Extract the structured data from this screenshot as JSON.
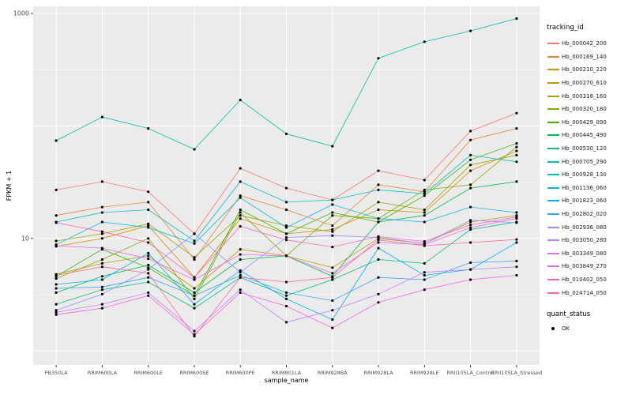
{
  "colors": {
    "panel_bg": "#EBEBEB",
    "grid": "#FFFFFF",
    "tick_color": "#4D4D4D",
    "axis_tick_mark": "#333333",
    "point_color": "#000000"
  },
  "chart_data": {
    "type": "line",
    "title": "",
    "xlabel": "sample_name",
    "ylabel": "FPKM + 1",
    "y_scale": "log10",
    "ylim": [
      0.75,
      1157
    ],
    "y_ticks": [
      10,
      1000
    ],
    "y_major_grid": [
      1,
      10,
      100,
      1000
    ],
    "y_minor_grid": [
      3.162,
      31.62,
      316.2
    ],
    "grid": true,
    "legend_position": "right",
    "legend": {
      "color_title": "tracking_id",
      "shape_title": "quant_status",
      "shape_items": [
        "OK"
      ]
    },
    "categories": [
      "PB350LA",
      "RRIM600LA",
      "RRIM600LE",
      "RRIM600SE",
      "RRIM600PE",
      "RRIM901LA",
      "RRIM928BA",
      "RRIM928LA",
      "RRIM928LE",
      "RRII105LA_Control",
      "RRII105LA_Stressed"
    ],
    "series": [
      {
        "name": "Hb_000042_200",
        "color": "#F8766D",
        "values": [
          27,
          32,
          26,
          11,
          42,
          28,
          22,
          40,
          33,
          90,
          130
        ]
      },
      {
        "name": "Hb_000169_140",
        "color": "#EA8331",
        "values": [
          16,
          19,
          21,
          6.5,
          24,
          18,
          13,
          30,
          26,
          75,
          95
        ]
      },
      {
        "name": "Hb_000210_220",
        "color": "#D89000",
        "values": [
          8.5,
          10,
          13,
          4.5,
          15,
          11,
          12,
          18,
          17,
          40,
          60
        ]
      },
      {
        "name": "Hb_000270_610",
        "color": "#C09B00",
        "values": [
          4.8,
          6,
          7,
          3.6,
          8,
          7,
          5.5,
          10,
          9,
          14,
          16
        ]
      },
      {
        "name": "Hb_000318_160",
        "color": "#A3A500",
        "values": [
          9.5,
          11,
          13.5,
          6.8,
          16,
          13,
          11.5,
          21,
          18,
          45,
          55
        ]
      },
      {
        "name": "Hb_000320_180",
        "color": "#7CAE00",
        "values": [
          4.4,
          6.5,
          10,
          2.9,
          17,
          7,
          16,
          15,
          27,
          30,
          65
        ]
      },
      {
        "name": "Hb_000429_090",
        "color": "#39B600",
        "values": [
          4.6,
          8,
          5.5,
          3.1,
          18,
          11,
          17,
          14,
          24,
          50,
          70
        ]
      },
      {
        "name": "Hb_000445_490",
        "color": "#00BB4E",
        "values": [
          3.3,
          4.6,
          5.8,
          3.3,
          6.5,
          7,
          4.6,
          14,
          16,
          28,
          32
        ]
      },
      {
        "name": "Hb_000530_120",
        "color": "#00BF7D",
        "values": [
          2.6,
          3.5,
          4.1,
          2.4,
          4.5,
          3.1,
          4.3,
          6.5,
          6,
          12,
          14
        ]
      },
      {
        "name": "Hb_000705_290",
        "color": "#00C1A3",
        "values": [
          74,
          120,
          95,
          62,
          170,
          85,
          66,
          400,
          560,
          700,
          900
        ]
      },
      {
        "name": "Hb_000928_130",
        "color": "#00BFC4",
        "values": [
          14,
          17,
          18,
          9.5,
          32,
          21,
          22,
          27,
          25,
          55,
          48
        ]
      },
      {
        "name": "Hb_001136_060",
        "color": "#00BAE0",
        "values": [
          8.8,
          14,
          12.5,
          9,
          23,
          12.5,
          20,
          15,
          14,
          19,
          17
        ]
      },
      {
        "name": "Hb_001823_060",
        "color": "#00B0F6",
        "values": [
          3.9,
          4.3,
          7.4,
          2.6,
          5.2,
          2.9,
          1.9,
          8.2,
          4.7,
          5.3,
          9.2
        ]
      },
      {
        "name": "Hb_002802_020",
        "color": "#35A2FF",
        "values": [
          3.6,
          3.7,
          4.5,
          3.1,
          4.7,
          3.3,
          2.8,
          4.5,
          4.3,
          6.1,
          6.3
        ]
      },
      {
        "name": "Hb_002936_080",
        "color": "#9590FF",
        "values": [
          2.3,
          3.2,
          5.3,
          11,
          5,
          10.2,
          10.6,
          10.2,
          9,
          14.5,
          13.8
        ]
      },
      {
        "name": "Hb_003050_280",
        "color": "#C77CFF",
        "values": [
          2.2,
          2.6,
          3.3,
          1.5,
          3.5,
          1.8,
          2.3,
          3.2,
          5,
          5.3,
          5.6
        ]
      },
      {
        "name": "Hb_003349_080",
        "color": "#E76BF3",
        "values": [
          8.6,
          8.2,
          6.6,
          4.3,
          7.2,
          7,
          4.9,
          9.2,
          8.8,
          12.5,
          15
        ]
      },
      {
        "name": "Hb_003849_270",
        "color": "#FA62DB",
        "values": [
          2.1,
          2.4,
          3.1,
          1.4,
          3.3,
          2.5,
          1.6,
          2.7,
          3.5,
          4.3,
          4.7
        ]
      },
      {
        "name": "Hb_010402_050",
        "color": "#FF62BC",
        "values": [
          13.8,
          11.5,
          9.2,
          4.5,
          12.8,
          9.7,
          8.4,
          10.4,
          9.4,
          13.2,
          15.5
        ]
      },
      {
        "name": "Hb_024714_050",
        "color": "#FF6A98",
        "values": [
          4.7,
          5.6,
          4.9,
          1.35,
          4.5,
          4.1,
          4.5,
          9.7,
          8.6,
          9.2,
          9.8
        ]
      }
    ]
  }
}
